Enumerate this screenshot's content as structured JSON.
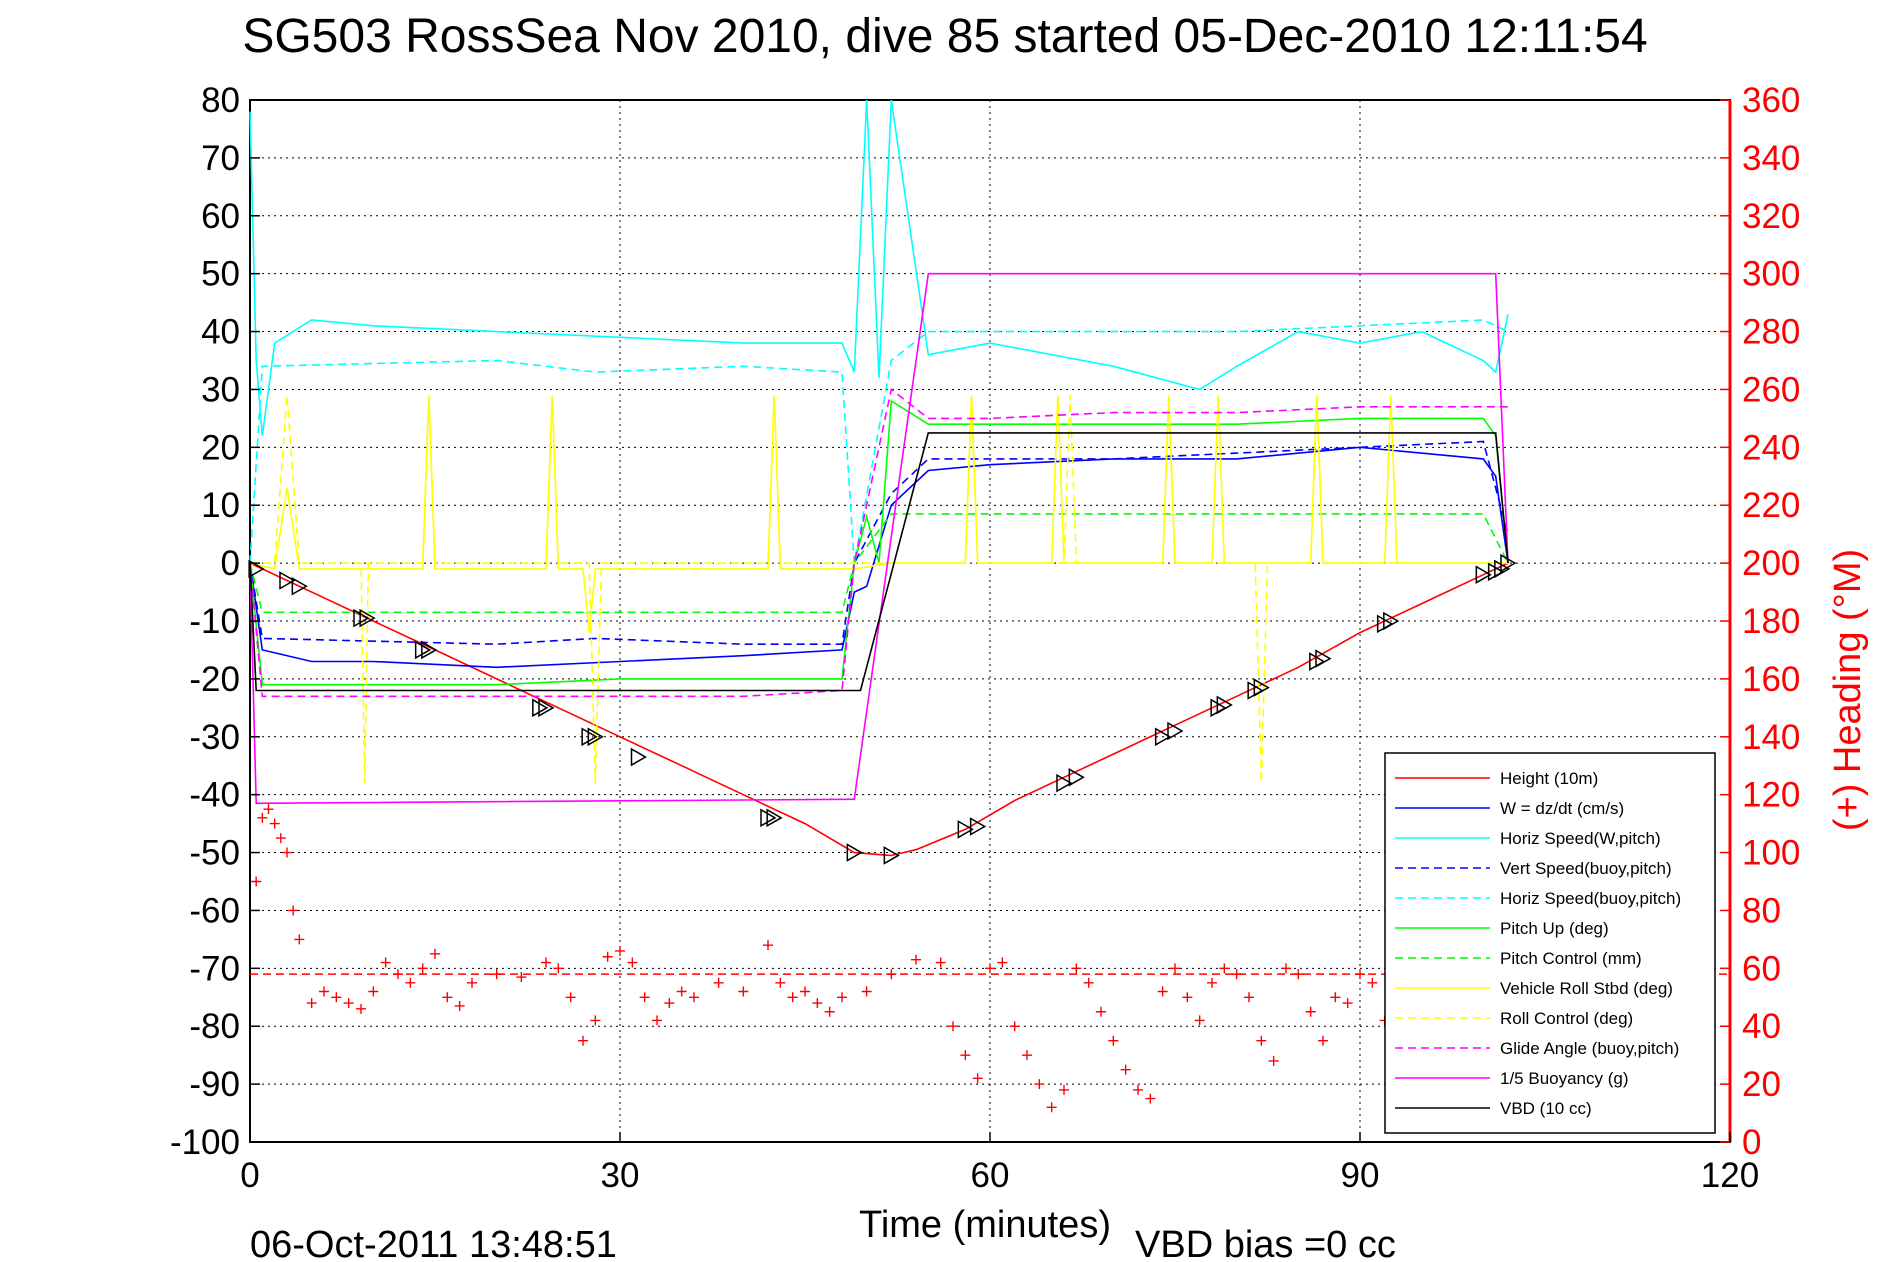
{
  "chart_data": {
    "type": "line",
    "title": "SG503 RossSea Nov 2010, dive 85 started 05-Dec-2010 12:11:54",
    "xlabel": "Time (minutes)",
    "ylabel": "",
    "y2label": "(+) Heading (°M)",
    "xlim": [
      0,
      120
    ],
    "ylim": [
      -100,
      80
    ],
    "y2lim": [
      0,
      360
    ],
    "x_ticks": [
      0,
      30,
      60,
      90,
      120
    ],
    "y_ticks": [
      -100,
      -90,
      -80,
      -70,
      -60,
      -50,
      -40,
      -30,
      -20,
      -10,
      0,
      10,
      20,
      30,
      40,
      50,
      60,
      70,
      80
    ],
    "y2_ticks": [
      0,
      20,
      40,
      60,
      80,
      100,
      120,
      140,
      160,
      180,
      200,
      220,
      240,
      260,
      280,
      300,
      320,
      340,
      360
    ],
    "grid": true,
    "legend_position": "bottom-right",
    "footer_left": "06-Oct-2011 13:48:51",
    "footer_right": "VBD bias =0 cc",
    "colors": {
      "height": "#ff0000",
      "w": "#0000ff",
      "horiz_speed": "#00ffff",
      "pitch": "#00ff00",
      "roll": "#ffff00",
      "glide": "#ff00ff",
      "buoyancy": "#ff00ff",
      "vbd": "#000000"
    },
    "series": [
      {
        "name": "Height (10m)",
        "color": "#ff0000",
        "dash": "solid",
        "x": [
          0,
          3,
          6,
          10,
          15,
          20,
          25,
          30,
          35,
          40,
          45,
          49,
          52,
          54,
          58,
          62,
          66,
          70,
          75,
          80,
          85,
          90,
          95,
          100,
          102
        ],
        "y": [
          0,
          -3,
          -6,
          -10,
          -15,
          -20,
          -25,
          -30,
          -35,
          -40,
          -45,
          -50,
          -50.5,
          -49.5,
          -46,
          -41,
          -37,
          -33,
          -28,
          -23,
          -18,
          -12,
          -7,
          -2,
          0
        ]
      },
      {
        "name": "W = dz/dt (cm/s)",
        "color": "#0000ff",
        "dash": "solid",
        "x": [
          0,
          1,
          5,
          10,
          20,
          30,
          40,
          48,
          49,
          50,
          52,
          55,
          60,
          70,
          80,
          90,
          100,
          101,
          102
        ],
        "y": [
          0,
          -15,
          -17,
          -17,
          -18,
          -17,
          -16,
          -15,
          -5,
          -4,
          10,
          16,
          17,
          18,
          18,
          20,
          18,
          15,
          0
        ]
      },
      {
        "name": "Horiz Speed(W,pitch)",
        "color": "#00ffff",
        "dash": "solid",
        "x": [
          0,
          0.5,
          1,
          2,
          5,
          10,
          20,
          30,
          40,
          48,
          49,
          50,
          51,
          52,
          55,
          60,
          70,
          77,
          80,
          85,
          90,
          95,
          100,
          101,
          102
        ],
        "y": [
          78,
          35,
          22,
          38,
          42,
          41,
          40,
          39,
          38,
          38,
          33,
          80,
          32,
          80,
          36,
          38,
          34,
          30,
          34,
          40,
          38,
          40,
          35,
          33,
          43
        ]
      },
      {
        "name": "Vert Speed(buoy,pitch)",
        "color": "#0000ff",
        "dash": "dashed",
        "x": [
          0,
          1,
          20,
          28,
          40,
          48,
          49,
          52,
          55,
          60,
          70,
          80,
          90,
          100,
          102
        ],
        "y": [
          0,
          -13,
          -14,
          -13,
          -14,
          -14,
          0,
          12,
          18,
          18,
          18,
          19,
          20,
          21,
          5
        ]
      },
      {
        "name": "Horiz Speed(buoy,pitch)",
        "color": "#00ffff",
        "dash": "dashed",
        "x": [
          0,
          1,
          20,
          28,
          40,
          48,
          49,
          52,
          55,
          60,
          70,
          80,
          90,
          100,
          102
        ],
        "y": [
          0,
          34,
          35,
          33,
          34,
          33,
          0,
          35,
          40,
          40,
          40,
          40,
          41,
          42,
          40
        ]
      },
      {
        "name": "Pitch Up (deg)",
        "color": "#00ff00",
        "dash": "solid",
        "x": [
          0,
          1,
          10,
          20,
          30,
          40,
          48,
          49,
          50,
          51,
          52,
          55,
          60,
          70,
          80,
          90,
          100,
          101,
          102
        ],
        "y": [
          0,
          -21,
          -21,
          -21,
          -20,
          -20,
          -20,
          0,
          8,
          0,
          28,
          24,
          24,
          24,
          24,
          25,
          25,
          22,
          0
        ]
      },
      {
        "name": "Pitch Control (mm)",
        "color": "#00ff00",
        "dash": "dashed",
        "x": [
          0,
          1,
          48,
          49,
          52,
          100,
          102
        ],
        "y": [
          0,
          -8.5,
          -8.5,
          0,
          8.5,
          8.5,
          0
        ]
      },
      {
        "name": "Vehicle Roll Stbd (deg)",
        "color": "#ffff00",
        "dash": "solid",
        "x": [
          0,
          2,
          3,
          4,
          5,
          14,
          14.5,
          15,
          24,
          24.5,
          25,
          27,
          27.5,
          28,
          42,
          42.5,
          43,
          49,
          52,
          58,
          58.5,
          59,
          65,
          65.5,
          66,
          74,
          74.5,
          75,
          78,
          78.5,
          79,
          86,
          86.5,
          87,
          92,
          92.5,
          93,
          101,
          102
        ],
        "y": [
          0,
          -1,
          13,
          -1,
          -1,
          -1,
          29,
          -1,
          -1,
          29,
          -1,
          -1,
          -12,
          -1,
          -1,
          29,
          -1,
          -1,
          0,
          0,
          29,
          0,
          0,
          29,
          0,
          0,
          29,
          0,
          0,
          29,
          0,
          0,
          29,
          0,
          0,
          29,
          0,
          0,
          0
        ]
      },
      {
        "name": "Roll Control (deg)",
        "color": "#ffff00",
        "dash": "dashed",
        "x": [
          0,
          2,
          3,
          4,
          9,
          9.3,
          9.6,
          14,
          14.5,
          15,
          24,
          24.5,
          25,
          27.5,
          28,
          28.5,
          42,
          42.5,
          43,
          58,
          58.5,
          59,
          66,
          66.5,
          67,
          74,
          74.5,
          75,
          81.5,
          82,
          82.5,
          86,
          86.5,
          87,
          102
        ],
        "y": [
          0,
          0,
          29,
          0,
          0,
          -38,
          0,
          0,
          29,
          0,
          0,
          29,
          0,
          0,
          -38,
          0,
          0,
          29,
          0,
          0,
          29,
          0,
          0,
          29,
          0,
          0,
          29,
          0,
          0,
          -38,
          0,
          0,
          29,
          0,
          0
        ]
      },
      {
        "name": "Glide Angle (buoy,pitch)",
        "color": "#ff00ff",
        "dash": "dashed",
        "x": [
          0,
          1,
          20,
          30,
          40,
          48,
          49,
          52,
          55,
          60,
          70,
          80,
          90,
          100,
          102
        ],
        "y": [
          0,
          -23,
          -23,
          -23,
          -23,
          -22,
          0,
          30,
          25,
          25,
          26,
          26,
          27,
          27,
          27
        ]
      },
      {
        "name": "1/5 Buoyancy (g)",
        "color": "#ff00ff",
        "dash": "solid",
        "x": [
          0,
          0.5,
          48.5,
          49,
          55,
          100,
          101,
          102
        ],
        "y": [
          0,
          -41.5,
          -40.8,
          -40.8,
          50,
          50,
          50,
          0
        ]
      },
      {
        "name": "VBD (10 cc)",
        "color": "#000000",
        "dash": "solid",
        "x": [
          0,
          0.5,
          49,
          49.5,
          55,
          101,
          102
        ],
        "y": [
          0,
          -22,
          -22,
          -22,
          22.5,
          22.5,
          0
        ]
      }
    ],
    "heading": {
      "name": "(+) Heading (°M)",
      "color": "#ff0000",
      "x": [
        0.5,
        1,
        1.5,
        2,
        2.5,
        3,
        3.5,
        4,
        5,
        6,
        7,
        8,
        9,
        10,
        11,
        12,
        13,
        14,
        15,
        16,
        17,
        18,
        20,
        22,
        24,
        25,
        26,
        27,
        28,
        29,
        30,
        31,
        32,
        33,
        34,
        35,
        36,
        38,
        40,
        42,
        43,
        44,
        45,
        46,
        47,
        48,
        50,
        52,
        54,
        56,
        57,
        58,
        59,
        60,
        61,
        62,
        63,
        64,
        65,
        66,
        67,
        68,
        69,
        70,
        71,
        72,
        73,
        74,
        75,
        76,
        77,
        78,
        79,
        80,
        81,
        82,
        83,
        84,
        85,
        86,
        87,
        88,
        89,
        90,
        91,
        92
      ],
      "y": [
        90,
        112,
        115,
        110,
        105,
        100,
        80,
        70,
        48,
        52,
        50,
        48,
        46,
        52,
        62,
        58,
        55,
        60,
        65,
        50,
        47,
        55,
        58,
        57,
        62,
        60,
        50,
        35,
        42,
        64,
        66,
        62,
        50,
        42,
        48,
        52,
        50,
        55,
        52,
        68,
        55,
        50,
        52,
        48,
        45,
        50,
        52,
        58,
        63,
        62,
        40,
        30,
        22,
        60,
        62,
        40,
        30,
        20,
        12,
        18,
        60,
        55,
        45,
        35,
        25,
        18,
        15,
        52,
        60,
        50,
        42,
        55,
        60,
        58,
        50,
        35,
        28,
        60,
        58,
        45,
        35,
        50,
        48,
        58,
        55,
        42
      ],
      "ref_line": 58
    },
    "markers": {
      "x": [
        0.5,
        3,
        4,
        9,
        9.5,
        14,
        14.5,
        23.5,
        24,
        27.5,
        28,
        31.5,
        42,
        42.5,
        49,
        52,
        58,
        59,
        66,
        67,
        74,
        75,
        78.5,
        79,
        81.5,
        82,
        86.5,
        87,
        92,
        92.5,
        100,
        101,
        101.5,
        102
      ],
      "y": [
        -1,
        -3,
        -4,
        -9.5,
        -9.5,
        -15,
        -15,
        -25,
        -25,
        -30,
        -30,
        -33.5,
        -44,
        -44,
        -50,
        -50.5,
        -46,
        -45.5,
        -38,
        -37,
        -30,
        -29,
        -25,
        -24.5,
        -22,
        -21.5,
        -17,
        -16.5,
        -10.5,
        -10,
        -2,
        -1.5,
        -1,
        0
      ]
    }
  }
}
